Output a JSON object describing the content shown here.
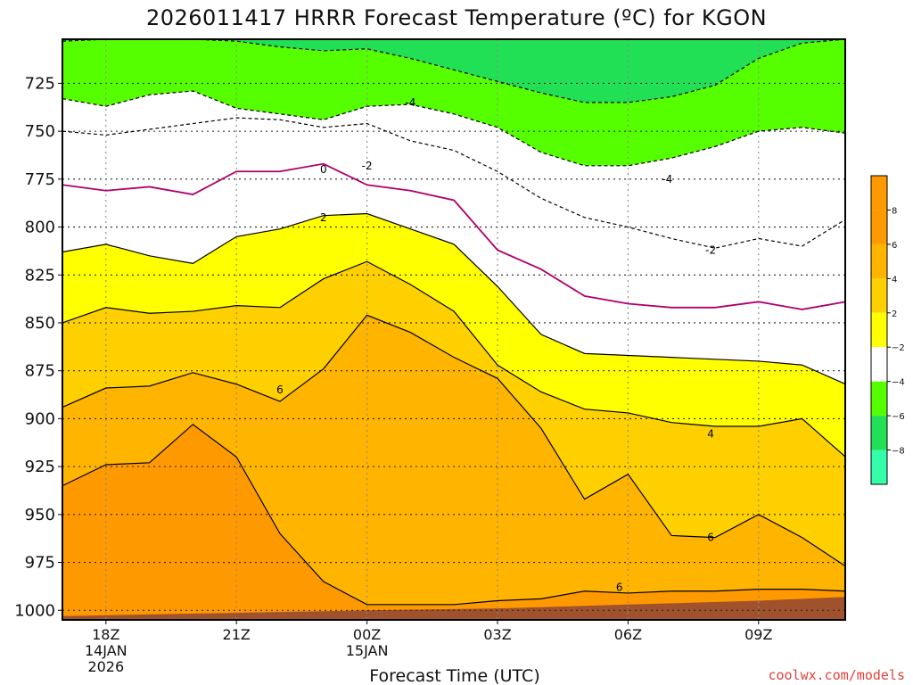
{
  "chart_data": {
    "type": "contour",
    "title": "2026011417 HRRR Forecast Temperature (ºC) for KGON",
    "xlabel": "Forecast Time (UTC)",
    "ylabel": "",
    "y_axis": "pressure (hPa), inverted",
    "ylim": [
      1005,
      702
    ],
    "y_ticks": [
      725,
      750,
      775,
      800,
      825,
      850,
      875,
      900,
      925,
      950,
      975,
      1000
    ],
    "x_hours": [
      17,
      18,
      19,
      20,
      21,
      22,
      23,
      24,
      25,
      26,
      27,
      28,
      29,
      30,
      31,
      32,
      33,
      34,
      35
    ],
    "x_ticks": [
      {
        "hour": 18,
        "label": "18Z",
        "date": "14JAN",
        "year": "2026"
      },
      {
        "hour": 21,
        "label": "21Z",
        "date": "",
        "year": ""
      },
      {
        "hour": 24,
        "label": "00Z",
        "date": "15JAN",
        "year": ""
      },
      {
        "hour": 27,
        "label": "03Z",
        "date": "",
        "year": ""
      },
      {
        "hour": 30,
        "label": "06Z",
        "date": "",
        "year": ""
      },
      {
        "hour": 33,
        "label": "09Z",
        "date": "",
        "year": ""
      }
    ],
    "grid": true,
    "isotherms_hpa": [
      {
        "temp": -4,
        "p": [
          703,
          702,
          702,
          702,
          703,
          706,
          708,
          707,
          712,
          718,
          724,
          730,
          735,
          735,
          732,
          726,
          712,
          704,
          702
        ]
      },
      {
        "temp": -2,
        "p": [
          733,
          737,
          731,
          729,
          738,
          741,
          744,
          737,
          736,
          741,
          748,
          761,
          768,
          768,
          764,
          758,
          750,
          748,
          751
        ]
      },
      {
        "temp": -2,
        "p": [
          750,
          752,
          749,
          746,
          743,
          744,
          748,
          746,
          755,
          760,
          771,
          785,
          795,
          800,
          806,
          811,
          806,
          810,
          796
        ]
      },
      {
        "temp": 0,
        "p": [
          778,
          781,
          779,
          783,
          771,
          771,
          767,
          778,
          781,
          786,
          812,
          822,
          836,
          840,
          842,
          842,
          839,
          843,
          839
        ]
      },
      {
        "temp": 2,
        "p": [
          813,
          809,
          815,
          819,
          805,
          801,
          794,
          793,
          801,
          809,
          831,
          856,
          866,
          867,
          868,
          869,
          870,
          872,
          882
        ]
      },
      {
        "temp": 4,
        "p": [
          850,
          842,
          845,
          844,
          841,
          842,
          827,
          818,
          830,
          844,
          872,
          886,
          895,
          897,
          902,
          904,
          904,
          900,
          920
        ]
      },
      {
        "temp": 6,
        "p": [
          894,
          884,
          883,
          876,
          882,
          891,
          874,
          846,
          855,
          868,
          879,
          905,
          942,
          929,
          961,
          962,
          950,
          962,
          977
        ]
      },
      {
        "temp": 8,
        "p": [
          935,
          924,
          923,
          903,
          920,
          960,
          985,
          997,
          997,
          997,
          995,
          994,
          990,
          991,
          990,
          990,
          989,
          989,
          990
        ]
      }
    ],
    "contour_labels": [
      {
        "text": "-4",
        "hour": 25.0,
        "p": 735
      },
      {
        "text": "-2",
        "hour": 24.0,
        "p": 768
      },
      {
        "text": "0",
        "hour": 23.0,
        "p": 770
      },
      {
        "text": "2",
        "hour": 23.0,
        "p": 795
      },
      {
        "text": "6",
        "hour": 22.0,
        "p": 885
      },
      {
        "text": "-4",
        "hour": 30.9,
        "p": 775
      },
      {
        "text": "-2",
        "hour": 31.9,
        "p": 812
      },
      {
        "text": "4",
        "hour": 31.9,
        "p": 908
      },
      {
        "text": "6",
        "hour": 31.9,
        "p": 962
      },
      {
        "text": "6",
        "hour": 29.8,
        "p": 988
      }
    ],
    "colorbar": {
      "ticks": [
        8,
        6,
        4,
        2,
        -2,
        -4,
        -6,
        -8
      ],
      "colors": [
        "#ff9900",
        "#ffb400",
        "#ffd000",
        "#ffff00",
        "#ffffff",
        "#55ff00",
        "#22e055",
        "#33ffaa"
      ]
    },
    "fill_colors": {
      "8": "#ff9900",
      "6": "#ffb400",
      "4": "#ffd000",
      "2": "#ffff00",
      "0": "#ffffff",
      "-2": "#ffffff",
      "-4": "#55ff00",
      "-6": "#22e055",
      "ground": "#a0522d"
    }
  },
  "credit": "coolwx.com/models"
}
